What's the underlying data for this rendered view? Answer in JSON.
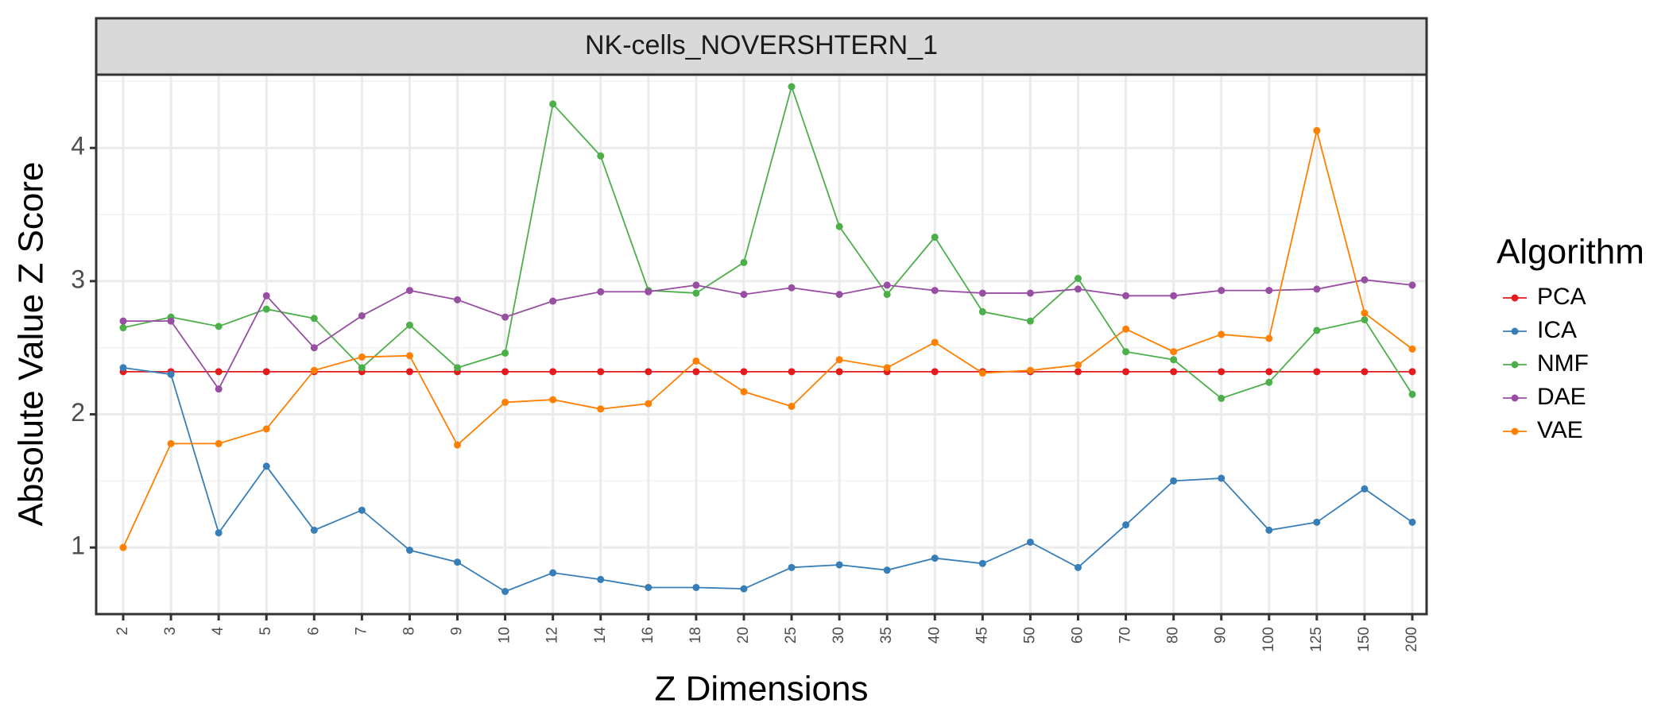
{
  "chart_data": {
    "type": "line",
    "facet_title": "NK-cells_NOVERSHTERN_1",
    "xlabel": "Z Dimensions",
    "ylabel": "Absolute Value Z Score",
    "ylim": [
      0.5,
      4.55
    ],
    "yticks": [
      1,
      2,
      3,
      4
    ],
    "grid": true,
    "legend_title": "Algorithm",
    "legend_position": "right",
    "categories": [
      "2",
      "3",
      "4",
      "5",
      "6",
      "7",
      "8",
      "9",
      "10",
      "12",
      "14",
      "16",
      "18",
      "20",
      "25",
      "30",
      "35",
      "40",
      "45",
      "50",
      "60",
      "70",
      "80",
      "90",
      "100",
      "125",
      "150",
      "200"
    ],
    "series": [
      {
        "name": "PCA",
        "color": "#E41A1C",
        "values": [
          2.32,
          2.32,
          2.32,
          2.32,
          2.32,
          2.32,
          2.32,
          2.32,
          2.32,
          2.32,
          2.32,
          2.32,
          2.32,
          2.32,
          2.32,
          2.32,
          2.32,
          2.32,
          2.32,
          2.32,
          2.32,
          2.32,
          2.32,
          2.32,
          2.32,
          2.32,
          2.32,
          2.32
        ]
      },
      {
        "name": "ICA",
        "color": "#377EB8",
        "values": [
          2.35,
          2.3,
          1.11,
          1.61,
          1.13,
          1.28,
          0.98,
          0.89,
          0.67,
          0.81,
          0.76,
          0.7,
          0.7,
          0.69,
          0.85,
          0.87,
          0.83,
          0.92,
          0.88,
          1.04,
          0.85,
          1.17,
          1.5,
          1.52,
          1.13,
          1.19,
          1.44,
          1.19
        ]
      },
      {
        "name": "NMF",
        "color": "#4DAF4A",
        "values": [
          2.65,
          2.73,
          2.66,
          2.79,
          2.72,
          2.35,
          2.67,
          2.35,
          2.46,
          4.33,
          3.94,
          2.93,
          2.91,
          3.14,
          4.46,
          3.41,
          2.9,
          3.33,
          2.77,
          2.7,
          3.02,
          2.47,
          2.41,
          2.12,
          2.24,
          2.63,
          2.71,
          2.15
        ]
      },
      {
        "name": "DAE",
        "color": "#984EA3",
        "values": [
          2.7,
          2.7,
          2.19,
          2.89,
          2.5,
          2.74,
          2.93,
          2.86,
          2.73,
          2.85,
          2.92,
          2.92,
          2.97,
          2.9,
          2.95,
          2.9,
          2.97,
          2.93,
          2.91,
          2.91,
          2.94,
          2.89,
          2.89,
          2.93,
          2.93,
          2.94,
          3.01,
          2.97
        ]
      },
      {
        "name": "VAE",
        "color": "#FF7F00",
        "values": [
          1.0,
          1.78,
          1.78,
          1.89,
          2.33,
          2.43,
          2.44,
          1.77,
          2.09,
          2.11,
          2.04,
          2.08,
          2.4,
          2.17,
          2.06,
          2.41,
          2.35,
          2.54,
          2.31,
          2.33,
          2.37,
          2.64,
          2.47,
          2.6,
          2.57,
          4.13,
          2.76,
          2.49
        ]
      }
    ]
  }
}
